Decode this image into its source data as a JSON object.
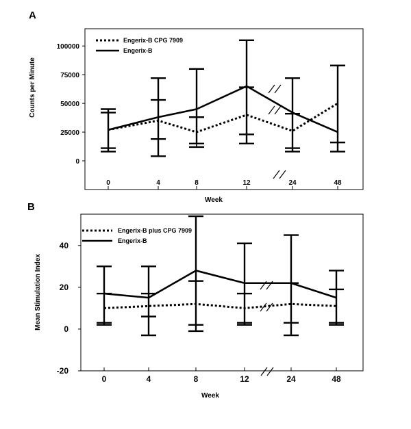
{
  "chart_data": [
    {
      "panel_label": "A",
      "type": "line",
      "xlabel": "Week",
      "ylabel": "Counts per Minute",
      "categories": [
        "0",
        "4",
        "8",
        "12",
        "24",
        "48"
      ],
      "ylim": [
        -25000,
        115000
      ],
      "yticks": [
        "0",
        "25000",
        "50000",
        "75000",
        "100000"
      ],
      "ytick_values": [
        0,
        25000,
        50000,
        75000,
        100000
      ],
      "legend_position": "top-left",
      "axis_break_between": [
        "12",
        "24"
      ],
      "series": [
        {
          "name": "Engerix-B CPG 7909",
          "style": "dotted",
          "values": [
            27000,
            35000,
            25000,
            40000,
            26000,
            50000
          ],
          "error_upper": [
            42000,
            53000,
            38000,
            64000,
            41000,
            83000
          ],
          "error_lower": [
            11000,
            19000,
            12000,
            23000,
            11000,
            16000
          ]
        },
        {
          "name": "Engerix-B",
          "style": "solid",
          "values": [
            27000,
            38000,
            45000,
            65000,
            42000,
            25000
          ],
          "error_upper": [
            45000,
            72000,
            80000,
            105000,
            72000,
            83000
          ],
          "error_lower": [
            8000,
            4000,
            15000,
            15000,
            8000,
            8000
          ]
        }
      ]
    },
    {
      "panel_label": "B",
      "type": "line",
      "xlabel": "Week",
      "ylabel": "Mean Stimulation Index",
      "categories": [
        "0",
        "4",
        "8",
        "12",
        "24",
        "48"
      ],
      "ylim": [
        -20,
        55
      ],
      "yticks": [
        "-20",
        "0",
        "20",
        "40"
      ],
      "ytick_values": [
        -20,
        0,
        20,
        40
      ],
      "legend_position": "top-left",
      "axis_break_between": [
        "12",
        "24"
      ],
      "series": [
        {
          "name": "Engerix-B plus CPG 7909",
          "style": "dotted",
          "values": [
            10,
            11,
            12,
            10,
            12,
            11
          ],
          "error_upper": [
            17,
            17,
            23,
            17,
            22,
            19
          ],
          "error_lower": [
            3,
            6,
            2,
            3,
            3,
            3
          ]
        },
        {
          "name": "Engerix-B",
          "style": "solid",
          "values": [
            17,
            15,
            28,
            22,
            22,
            15
          ],
          "error_upper": [
            30,
            30,
            54,
            41,
            45,
            28
          ],
          "error_lower": [
            2,
            -3,
            -1,
            2,
            -3,
            2
          ]
        }
      ]
    }
  ]
}
